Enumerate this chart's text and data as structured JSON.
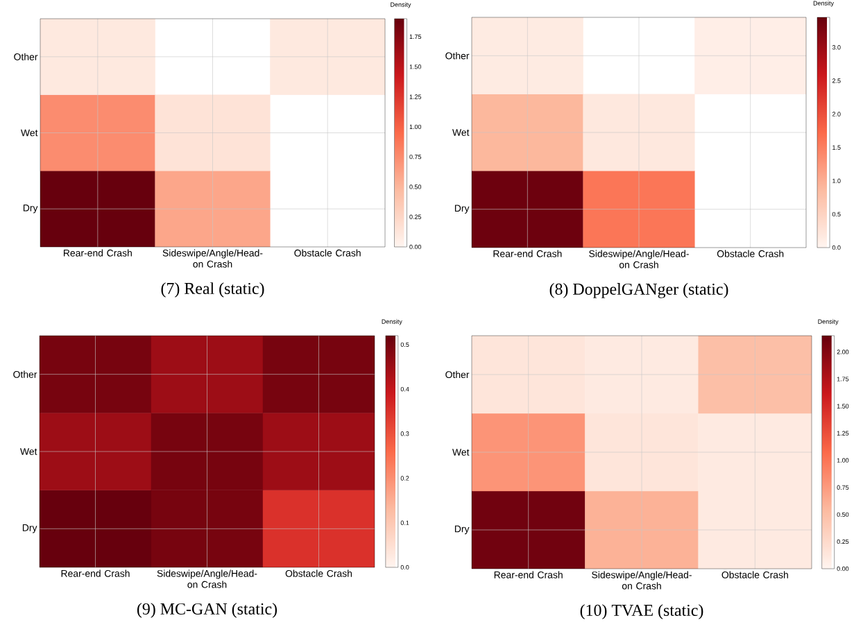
{
  "chart_data": [
    {
      "type": "heatmap",
      "title": "(7)   Real (static)",
      "clabel": "Density",
      "grid": true,
      "categories": [
        "Rear-end Crash",
        "Sideswipe/Angle/Head-on Crash",
        "Obstacle Crash"
      ],
      "y_categories": [
        "Other",
        "Wet",
        "Dry"
      ],
      "cells": [
        [
          0.1,
          null,
          0.1
        ],
        [
          0.75,
          0.15,
          null
        ],
        [
          1.9,
          0.6,
          null
        ]
      ],
      "clim": [
        0,
        1.9
      ],
      "cticks": [
        {
          "value": 0,
          "label": "0.00"
        },
        {
          "value": 0.25,
          "label": "0.25"
        },
        {
          "value": 0.5,
          "label": "0.50"
        },
        {
          "value": 0.75,
          "label": "0.75"
        },
        {
          "value": 1,
          "label": "1.00"
        },
        {
          "value": 1.25,
          "label": "1.25"
        },
        {
          "value": 1.5,
          "label": "1.50"
        },
        {
          "value": 1.75,
          "label": "1.75"
        }
      ]
    },
    {
      "type": "heatmap",
      "title": "(8)   DoppelGANger (static)",
      "clabel": "Density",
      "grid": true,
      "categories": [
        "Rear-end Crash",
        "Sideswipe/Angle/Head-on Crash",
        "Obstacle Crash"
      ],
      "y_categories": [
        "Other",
        "Wet",
        "Dry"
      ],
      "cells": [
        [
          0.15,
          null,
          0.1
        ],
        [
          0.9,
          0.2,
          null
        ],
        [
          3.4,
          1.6,
          null
        ]
      ],
      "clim": [
        0,
        3.45
      ],
      "cticks": [
        {
          "value": 0,
          "label": "0.0"
        },
        {
          "value": 0.5,
          "label": "0.5"
        },
        {
          "value": 1,
          "label": "1.0"
        },
        {
          "value": 1.5,
          "label": "1.5"
        },
        {
          "value": 2,
          "label": "2.0"
        },
        {
          "value": 2.5,
          "label": "2.5"
        },
        {
          "value": 3,
          "label": "3.0"
        }
      ]
    },
    {
      "type": "heatmap",
      "title": "(9)   MC-GAN (static)",
      "clabel": "Density",
      "grid": true,
      "categories": [
        "Rear-end Crash",
        "Sideswipe/Angle/Head-on Crash",
        "Obstacle Crash"
      ],
      "y_categories": [
        "Other",
        "Wet",
        "Dry"
      ],
      "cells": [
        [
          0.5,
          0.45,
          0.5
        ],
        [
          0.45,
          0.5,
          0.45
        ],
        [
          0.52,
          0.5,
          0.35
        ]
      ],
      "clim": [
        0,
        0.52
      ],
      "cticks": [
        {
          "value": 0,
          "label": "0.0"
        },
        {
          "value": 0.1,
          "label": "0.1"
        },
        {
          "value": 0.2,
          "label": "0.2"
        },
        {
          "value": 0.3,
          "label": "0.3"
        },
        {
          "value": 0.4,
          "label": "0.4"
        },
        {
          "value": 0.5,
          "label": "0.5"
        }
      ]
    },
    {
      "type": "heatmap",
      "title": "(10)   TVAE (static)",
      "clabel": "Density",
      "grid": true,
      "categories": [
        "Rear-end Crash",
        "Sideswipe/Angle/Head-on Crash",
        "Obstacle Crash"
      ],
      "y_categories": [
        "Other",
        "Wet",
        "Dry"
      ],
      "cells": [
        [
          0.15,
          0.1,
          0.5
        ],
        [
          0.8,
          0.15,
          0.1
        ],
        [
          2.1,
          0.6,
          0.1
        ]
      ],
      "clim": [
        0,
        2.15
      ],
      "cticks": [
        {
          "value": 0,
          "label": "0.00"
        },
        {
          "value": 0.25,
          "label": "0.25"
        },
        {
          "value": 0.5,
          "label": "0.50"
        },
        {
          "value": 0.75,
          "label": "0.75"
        },
        {
          "value": 1,
          "label": "1.00"
        },
        {
          "value": 1.25,
          "label": "1.25"
        },
        {
          "value": 1.5,
          "label": "1.50"
        },
        {
          "value": 1.75,
          "label": "1.75"
        },
        {
          "value": 2,
          "label": "2.00"
        }
      ]
    }
  ]
}
